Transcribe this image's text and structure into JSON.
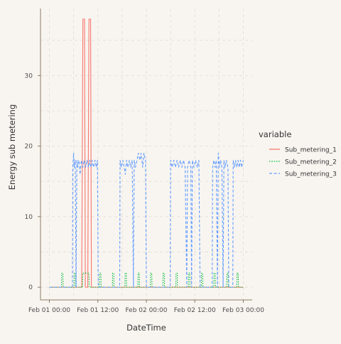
{
  "chart_data": {
    "type": "line",
    "xlabel": "DateTime",
    "ylabel": "Energy sub metering",
    "x_ticks": [
      "Feb 01 00:00",
      "Feb 01 12:00",
      "Feb 02 00:00",
      "Feb 02 12:00",
      "Feb 03 00:00"
    ],
    "x_tick_hours": [
      0,
      12,
      24,
      36,
      48
    ],
    "xlim_hours": [
      0,
      48
    ],
    "y_ticks": [
      0,
      10,
      20,
      30
    ],
    "ylim": [
      -1.8,
      39.5
    ],
    "grid": true,
    "legend": {
      "title": "variable",
      "position": "right"
    },
    "series": [
      {
        "name": "Sub_metering_1",
        "color": "#f8766d",
        "dash": "solid",
        "points": [
          [
            0,
            0
          ],
          [
            8,
            0
          ],
          [
            8.3,
            38
          ],
          [
            8.7,
            38
          ],
          [
            8.9,
            0
          ],
          [
            9.5,
            0
          ],
          [
            9.8,
            38
          ],
          [
            10.2,
            38
          ],
          [
            10.4,
            0
          ],
          [
            48,
            0
          ]
        ]
      },
      {
        "name": "Sub_metering_2",
        "color": "#00ba38",
        "dash": "dotted",
        "points": [
          [
            0,
            0
          ],
          [
            3,
            0
          ],
          [
            3.05,
            2
          ],
          [
            3.35,
            2
          ],
          [
            3.4,
            0
          ],
          [
            6.1,
            0
          ],
          [
            6.15,
            2
          ],
          [
            6.45,
            2
          ],
          [
            6.5,
            0
          ],
          [
            8.2,
            0
          ],
          [
            8.25,
            2
          ],
          [
            9.8,
            2
          ],
          [
            9.85,
            0
          ],
          [
            12.4,
            0
          ],
          [
            12.45,
            2
          ],
          [
            12.75,
            2
          ],
          [
            12.8,
            0
          ],
          [
            15.6,
            0
          ],
          [
            15.65,
            2
          ],
          [
            15.95,
            2
          ],
          [
            16,
            0
          ],
          [
            18.7,
            0
          ],
          [
            18.75,
            2
          ],
          [
            19.05,
            2
          ],
          [
            19.1,
            0
          ],
          [
            21.9,
            0
          ],
          [
            21.95,
            2
          ],
          [
            22.25,
            2
          ],
          [
            22.3,
            0
          ],
          [
            25,
            0
          ],
          [
            25.05,
            2
          ],
          [
            25.35,
            2
          ],
          [
            25.4,
            0
          ],
          [
            28.1,
            0
          ],
          [
            28.15,
            2
          ],
          [
            28.45,
            2
          ],
          [
            28.5,
            0
          ],
          [
            31.3,
            0
          ],
          [
            31.35,
            2
          ],
          [
            31.65,
            2
          ],
          [
            31.7,
            0
          ],
          [
            34.4,
            0
          ],
          [
            34.45,
            2
          ],
          [
            34.75,
            2
          ],
          [
            34.8,
            0
          ],
          [
            37.6,
            0
          ],
          [
            37.65,
            2
          ],
          [
            37.95,
            2
          ],
          [
            38,
            0
          ],
          [
            40.7,
            0
          ],
          [
            40.75,
            2
          ],
          [
            41.05,
            2
          ],
          [
            41.1,
            0
          ],
          [
            43.9,
            0
          ],
          [
            43.95,
            2
          ],
          [
            44.25,
            2
          ],
          [
            44.3,
            0
          ],
          [
            46.4,
            0
          ],
          [
            46.45,
            2
          ],
          [
            46.75,
            2
          ],
          [
            46.8,
            0
          ],
          [
            48,
            0
          ]
        ]
      },
      {
        "name": "Sub_metering_3",
        "color": "#619cff",
        "dash": "dashed",
        "points": [
          [
            0,
            0
          ],
          [
            5.7,
            0
          ],
          [
            5.8,
            17
          ],
          [
            6,
            19
          ],
          [
            6.15,
            17
          ],
          [
            6.4,
            18
          ],
          [
            6.6,
            0
          ],
          [
            6.8,
            18
          ],
          [
            7,
            17
          ],
          [
            7.3,
            18
          ],
          [
            7.6,
            16
          ],
          [
            7.9,
            18
          ],
          [
            8.3,
            17
          ],
          [
            8.6,
            18
          ],
          [
            9,
            17
          ],
          [
            9.3,
            18
          ],
          [
            9.7,
            17
          ],
          [
            10,
            18
          ],
          [
            10.3,
            17
          ],
          [
            10.6,
            18
          ],
          [
            10.9,
            17
          ],
          [
            11.3,
            18
          ],
          [
            11.6,
            17
          ],
          [
            11.9,
            18
          ],
          [
            12.1,
            0
          ],
          [
            17.4,
            0
          ],
          [
            17.5,
            18
          ],
          [
            17.8,
            17
          ],
          [
            18.2,
            18
          ],
          [
            18.5,
            17
          ],
          [
            18.8,
            16
          ],
          [
            19.1,
            18
          ],
          [
            19.4,
            17
          ],
          [
            19.8,
            18
          ],
          [
            20.1,
            17
          ],
          [
            20.5,
            18
          ],
          [
            20.8,
            0
          ],
          [
            21,
            18
          ],
          [
            21.3,
            17
          ],
          [
            21.7,
            18
          ],
          [
            22,
            19
          ],
          [
            22.4,
            18
          ],
          [
            22.7,
            19
          ],
          [
            23.1,
            17
          ],
          [
            23.4,
            19
          ],
          [
            23.8,
            18
          ],
          [
            24,
            0
          ],
          [
            29.9,
            0
          ],
          [
            30,
            18
          ],
          [
            30.4,
            17
          ],
          [
            30.8,
            18
          ],
          [
            31.2,
            17
          ],
          [
            31.6,
            18
          ],
          [
            32,
            17
          ],
          [
            32.4,
            18
          ],
          [
            32.8,
            17
          ],
          [
            33.2,
            18
          ],
          [
            33.6,
            17
          ],
          [
            34,
            0
          ],
          [
            34.2,
            17
          ],
          [
            34.6,
            18
          ],
          [
            35,
            17
          ],
          [
            35.2,
            0
          ],
          [
            35.4,
            18
          ],
          [
            35.8,
            17
          ],
          [
            36.2,
            18
          ],
          [
            36.6,
            17
          ],
          [
            37,
            18
          ],
          [
            37.3,
            0
          ],
          [
            40.3,
            0
          ],
          [
            40.4,
            17
          ],
          [
            40.7,
            18
          ],
          [
            41,
            17
          ],
          [
            41.3,
            18
          ],
          [
            41.6,
            0
          ],
          [
            41.8,
            19
          ],
          [
            42.1,
            17
          ],
          [
            42.4,
            18
          ],
          [
            42.7,
            17
          ],
          [
            43,
            0
          ],
          [
            43.2,
            18
          ],
          [
            43.5,
            17
          ],
          [
            43.8,
            18
          ],
          [
            44.2,
            17
          ],
          [
            44.4,
            0
          ],
          [
            45.4,
            0
          ],
          [
            45.5,
            18
          ],
          [
            45.8,
            17
          ],
          [
            46.1,
            18
          ],
          [
            46.4,
            17
          ],
          [
            46.7,
            18
          ],
          [
            47,
            17
          ],
          [
            47.3,
            18
          ],
          [
            47.6,
            17
          ],
          [
            48,
            18
          ]
        ]
      }
    ]
  }
}
